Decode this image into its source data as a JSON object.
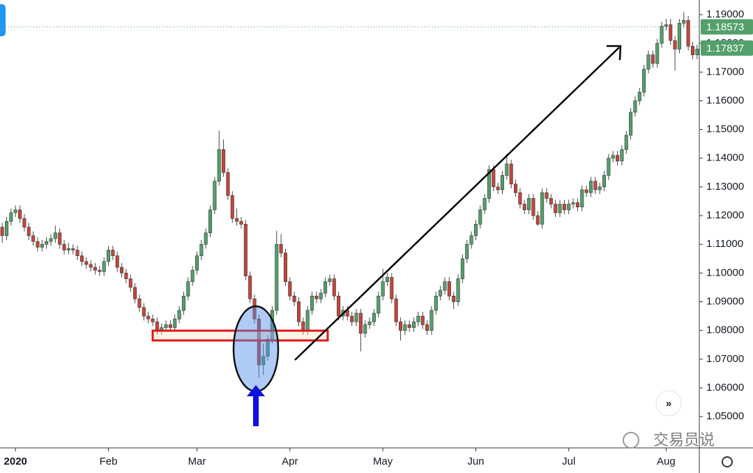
{
  "chart_data": {
    "type": "candlestick",
    "xlim": [
      -0.5,
      157.5
    ],
    "xticks": [
      {
        "value": 3,
        "label": "2020"
      },
      {
        "value": 24,
        "label": "Feb"
      },
      {
        "value": 44,
        "label": "Mar"
      },
      {
        "value": 65,
        "label": "Apr"
      },
      {
        "value": 86,
        "label": "May"
      },
      {
        "value": 107,
        "label": "Jun"
      },
      {
        "value": 128,
        "label": "Jul"
      },
      {
        "value": 150,
        "label": "Aug"
      }
    ],
    "ylim": [
      1.0391,
      1.1951
    ],
    "yticks": [
      {
        "value": 1.05,
        "label": "1.05000"
      },
      {
        "value": 1.06,
        "label": "1.06000"
      },
      {
        "value": 1.07,
        "label": "1.07000"
      },
      {
        "value": 1.08,
        "label": "1.08000"
      },
      {
        "value": 1.09,
        "label": "1.09000"
      },
      {
        "value": 1.1,
        "label": "1.10000"
      },
      {
        "value": 1.11,
        "label": "1.11000"
      },
      {
        "value": 1.12,
        "label": "1.12000"
      },
      {
        "value": 1.13,
        "label": "1.13000"
      },
      {
        "value": 1.14,
        "label": "1.14000"
      },
      {
        "value": 1.15,
        "label": "1.15000"
      },
      {
        "value": 1.16,
        "label": "1.16000"
      },
      {
        "value": 1.17,
        "label": "1.17000"
      },
      {
        "value": 1.18,
        "label": "1.18000"
      },
      {
        "value": 1.19,
        "label": "1.19000"
      }
    ],
    "up_color": "#53a06b",
    "down_color": "#c4463a",
    "price_labels": [
      {
        "value": 1.18573,
        "label": "1.18573",
        "color": "#53a06b"
      },
      {
        "value": 1.17837,
        "label": "1.17837",
        "color": "#53a06b"
      }
    ],
    "watermark": "交易员说",
    "candles": [
      [
        1.116,
        1.1175,
        1.1105,
        1.113
      ],
      [
        1.113,
        1.1195,
        1.1115,
        1.118
      ],
      [
        1.118,
        1.1225,
        1.1165,
        1.121
      ],
      [
        1.121,
        1.1235,
        1.1195,
        1.122
      ],
      [
        1.122,
        1.1235,
        1.1175,
        1.119
      ],
      [
        1.119,
        1.1205,
        1.1145,
        1.116
      ],
      [
        1.116,
        1.1175,
        1.1115,
        1.113
      ],
      [
        1.113,
        1.1145,
        1.1095,
        1.111
      ],
      [
        1.111,
        1.1125,
        1.1075,
        1.109
      ],
      [
        1.109,
        1.1115,
        1.1075,
        1.11
      ],
      [
        1.11,
        1.1125,
        1.1085,
        1.111
      ],
      [
        1.111,
        1.1135,
        1.1095,
        1.112
      ],
      [
        1.112,
        1.1165,
        1.1105,
        1.114
      ],
      [
        1.114,
        1.1155,
        1.1085,
        1.11
      ],
      [
        1.11,
        1.1115,
        1.1065,
        1.108
      ],
      [
        1.108,
        1.1105,
        1.1065,
        1.1085
      ],
      [
        1.1085,
        1.11,
        1.1065,
        1.108
      ],
      [
        1.108,
        1.1095,
        1.1045,
        1.106
      ],
      [
        1.106,
        1.1075,
        1.1025,
        1.104
      ],
      [
        1.104,
        1.1055,
        1.1015,
        1.103
      ],
      [
        1.103,
        1.1045,
        1.1005,
        1.102
      ],
      [
        1.102,
        1.1035,
        1.0995,
        1.101
      ],
      [
        1.101,
        1.1025,
        1.099,
        1.1005
      ],
      [
        1.1005,
        1.1055,
        1.099,
        1.104
      ],
      [
        1.104,
        1.1095,
        1.1025,
        1.108
      ],
      [
        1.108,
        1.1095,
        1.1045,
        1.106
      ],
      [
        1.106,
        1.1075,
        1.1005,
        1.102
      ],
      [
        1.102,
        1.1035,
        1.0985,
        1.1
      ],
      [
        1.1,
        1.1015,
        1.0965,
        1.098
      ],
      [
        1.098,
        1.0995,
        1.0935,
        1.095
      ],
      [
        1.095,
        1.0965,
        1.0895,
        1.091
      ],
      [
        1.091,
        1.0925,
        1.0865,
        1.088
      ],
      [
        1.088,
        1.0895,
        1.0835,
        1.085
      ],
      [
        1.085,
        1.0865,
        1.0825,
        1.084
      ],
      [
        1.084,
        1.0855,
        1.0815,
        1.083
      ],
      [
        1.083,
        1.0845,
        1.0785,
        1.08
      ],
      [
        1.08,
        1.0825,
        1.0785,
        1.081
      ],
      [
        1.081,
        1.0835,
        1.0795,
        1.082
      ],
      [
        1.082,
        1.0835,
        1.0795,
        1.081
      ],
      [
        1.081,
        1.0855,
        1.0795,
        1.084
      ],
      [
        1.084,
        1.0885,
        1.0825,
        1.087
      ],
      [
        1.087,
        1.0935,
        1.0855,
        1.092
      ],
      [
        1.092,
        1.0985,
        1.0905,
        1.097
      ],
      [
        1.097,
        1.1025,
        1.0955,
        1.101
      ],
      [
        1.101,
        1.1075,
        1.0995,
        1.106
      ],
      [
        1.106,
        1.1115,
        1.1045,
        1.11
      ],
      [
        1.11,
        1.1155,
        1.1085,
        1.114
      ],
      [
        1.114,
        1.1235,
        1.1125,
        1.122
      ],
      [
        1.122,
        1.1335,
        1.1205,
        1.132
      ],
      [
        1.132,
        1.1495,
        1.1305,
        1.143
      ],
      [
        1.143,
        1.1465,
        1.1335,
        1.135
      ],
      [
        1.135,
        1.1365,
        1.1255,
        1.127
      ],
      [
        1.127,
        1.1285,
        1.1175,
        1.119
      ],
      [
        1.119,
        1.1225,
        1.1165,
        1.118
      ],
      [
        1.118,
        1.1195,
        1.1155,
        1.117
      ],
      [
        1.117,
        1.1185,
        1.0975,
        1.099
      ],
      [
        1.099,
        1.1005,
        1.0895,
        1.091
      ],
      [
        1.091,
        1.0925,
        1.0825,
        1.084
      ],
      [
        1.084,
        1.0855,
        1.0636,
        1.068
      ],
      [
        1.068,
        1.0755,
        1.0645,
        1.071
      ],
      [
        1.071,
        1.0785,
        1.0695,
        1.077
      ],
      [
        1.077,
        1.0885,
        1.0755,
        1.087
      ],
      [
        1.087,
        1.1147,
        1.0855,
        1.11
      ],
      [
        1.11,
        1.1135,
        1.1055,
        1.107
      ],
      [
        1.107,
        1.1085,
        1.0955,
        1.097
      ],
      [
        1.097,
        1.0985,
        1.0905,
        1.092
      ],
      [
        1.092,
        1.0935,
        1.0885,
        1.09
      ],
      [
        1.09,
        1.0915,
        1.0815,
        1.083
      ],
      [
        1.083,
        1.0845,
        1.0785,
        1.08
      ],
      [
        1.08,
        1.0885,
        1.0785,
        1.087
      ],
      [
        1.087,
        1.0935,
        1.0855,
        1.092
      ],
      [
        1.092,
        1.0935,
        1.0895,
        1.091
      ],
      [
        1.091,
        1.0945,
        1.0895,
        1.093
      ],
      [
        1.093,
        1.0985,
        1.0915,
        1.097
      ],
      [
        1.097,
        1.0995,
        1.0955,
        1.098
      ],
      [
        1.098,
        1.0995,
        1.0905,
        1.092
      ],
      [
        1.092,
        1.0935,
        1.0835,
        1.085
      ],
      [
        1.085,
        1.0885,
        1.0835,
        1.087
      ],
      [
        1.087,
        1.0885,
        1.0835,
        1.085
      ],
      [
        1.085,
        1.0865,
        1.0815,
        1.083
      ],
      [
        1.083,
        1.0875,
        1.0815,
        1.086
      ],
      [
        1.086,
        1.0875,
        1.0727,
        1.079
      ],
      [
        1.079,
        1.0835,
        1.0775,
        1.082
      ],
      [
        1.082,
        1.0845,
        1.0805,
        1.083
      ],
      [
        1.083,
        1.0875,
        1.0815,
        1.086
      ],
      [
        1.086,
        1.0935,
        1.0845,
        1.092
      ],
      [
        1.092,
        1.1015,
        1.0905,
        1.097
      ],
      [
        1.097,
        1.1,
        1.0955,
        1.0985
      ],
      [
        1.0985,
        1.1,
        1.0895,
        1.091
      ],
      [
        1.091,
        1.0925,
        1.0815,
        1.083
      ],
      [
        1.083,
        1.0845,
        1.0765,
        1.08
      ],
      [
        1.08,
        1.0835,
        1.0785,
        1.082
      ],
      [
        1.082,
        1.0835,
        1.0795,
        1.081
      ],
      [
        1.081,
        1.0845,
        1.0795,
        1.083
      ],
      [
        1.083,
        1.0865,
        1.0815,
        1.085
      ],
      [
        1.085,
        1.0865,
        1.0805,
        1.082
      ],
      [
        1.082,
        1.0835,
        1.0785,
        1.08
      ],
      [
        1.08,
        1.0885,
        1.0785,
        1.087
      ],
      [
        1.087,
        1.0935,
        1.0855,
        1.092
      ],
      [
        1.092,
        1.0955,
        1.0905,
        1.094
      ],
      [
        1.094,
        1.0985,
        1.0925,
        1.097
      ],
      [
        1.097,
        1.0985,
        1.0905,
        1.092
      ],
      [
        1.092,
        1.0935,
        1.0875,
        1.09
      ],
      [
        1.09,
        1.0995,
        1.0885,
        1.098
      ],
      [
        1.098,
        1.1065,
        1.0965,
        1.105
      ],
      [
        1.105,
        1.1115,
        1.1035,
        1.11
      ],
      [
        1.11,
        1.1145,
        1.1085,
        1.113
      ],
      [
        1.113,
        1.1185,
        1.1115,
        1.117
      ],
      [
        1.117,
        1.1235,
        1.1155,
        1.122
      ],
      [
        1.122,
        1.1275,
        1.1205,
        1.126
      ],
      [
        1.126,
        1.1375,
        1.1245,
        1.136
      ],
      [
        1.136,
        1.1375,
        1.1285,
        1.13
      ],
      [
        1.13,
        1.1315,
        1.1275,
        1.129
      ],
      [
        1.129,
        1.1355,
        1.1275,
        1.134
      ],
      [
        1.134,
        1.1415,
        1.1325,
        1.138
      ],
      [
        1.138,
        1.1395,
        1.1295,
        1.131
      ],
      [
        1.131,
        1.1325,
        1.1265,
        1.128
      ],
      [
        1.128,
        1.1295,
        1.1225,
        1.124
      ],
      [
        1.124,
        1.1255,
        1.1205,
        1.122
      ],
      [
        1.122,
        1.1275,
        1.1205,
        1.126
      ],
      [
        1.126,
        1.1275,
        1.1185,
        1.12
      ],
      [
        1.12,
        1.1215,
        1.1165,
        1.117
      ],
      [
        1.117,
        1.1295,
        1.1155,
        1.128
      ],
      [
        1.128,
        1.1295,
        1.1245,
        1.126
      ],
      [
        1.126,
        1.1275,
        1.1225,
        1.124
      ],
      [
        1.124,
        1.1255,
        1.1195,
        1.121
      ],
      [
        1.121,
        1.1255,
        1.1195,
        1.124
      ],
      [
        1.124,
        1.1255,
        1.1205,
        1.122
      ],
      [
        1.122,
        1.1255,
        1.1205,
        1.124
      ],
      [
        1.124,
        1.126,
        1.1225,
        1.1245
      ],
      [
        1.1245,
        1.126,
        1.1215,
        1.123
      ],
      [
        1.123,
        1.1305,
        1.1215,
        1.129
      ],
      [
        1.129,
        1.1305,
        1.1265,
        1.128
      ],
      [
        1.128,
        1.1335,
        1.1265,
        1.132
      ],
      [
        1.132,
        1.1335,
        1.1275,
        1.129
      ],
      [
        1.129,
        1.1315,
        1.1275,
        1.13
      ],
      [
        1.13,
        1.1355,
        1.1285,
        1.134
      ],
      [
        1.134,
        1.1415,
        1.1325,
        1.14
      ],
      [
        1.14,
        1.1425,
        1.1385,
        1.141
      ],
      [
        1.141,
        1.1425,
        1.1375,
        1.139
      ],
      [
        1.139,
        1.1445,
        1.1375,
        1.143
      ],
      [
        1.143,
        1.1495,
        1.1415,
        1.148
      ],
      [
        1.148,
        1.1575,
        1.1465,
        1.156
      ],
      [
        1.156,
        1.1615,
        1.1545,
        1.16
      ],
      [
        1.16,
        1.1645,
        1.1585,
        1.163
      ],
      [
        1.163,
        1.1725,
        1.1615,
        1.171
      ],
      [
        1.171,
        1.1775,
        1.1695,
        1.176
      ],
      [
        1.176,
        1.1775,
        1.1715,
        1.173
      ],
      [
        1.173,
        1.1815,
        1.1715,
        1.18
      ],
      [
        1.18,
        1.1875,
        1.1785,
        1.186
      ],
      [
        1.186,
        1.1885,
        1.1845,
        1.1865
      ],
      [
        1.1865,
        1.1885,
        1.1795,
        1.181
      ],
      [
        1.181,
        1.1825,
        1.1705,
        1.178
      ],
      [
        1.178,
        1.1885,
        1.1765,
        1.187
      ],
      [
        1.187,
        1.1909,
        1.1855,
        1.188
      ],
      [
        1.188,
        1.1895,
        1.1775,
        1.179
      ],
      [
        1.179,
        1.1805,
        1.1745,
        1.176
      ],
      [
        1.176,
        1.1795,
        1.1745,
        1.178
      ]
    ]
  }
}
